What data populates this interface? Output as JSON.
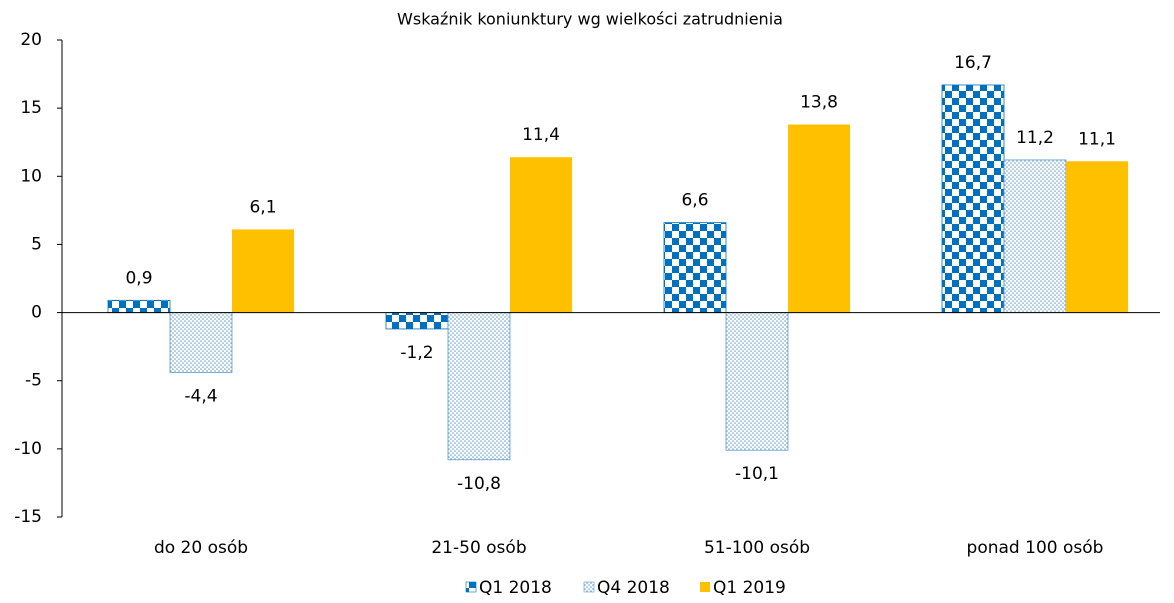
{
  "chart_data": {
    "type": "bar",
    "title": "Wskaźnik koniunktury wg wielkości zatrudnienia",
    "categories": [
      "do 20 osób",
      "21-50 osób",
      "51-100 osób",
      "ponad 100 osób"
    ],
    "series": [
      {
        "name": "Q1 2018",
        "color": "#0070c0",
        "pattern": "checker",
        "values": [
          0.9,
          -1.2,
          6.6,
          16.7
        ],
        "value_labels": [
          "0,9",
          "-1,2",
          "6,6",
          "16,7"
        ]
      },
      {
        "name": "Q4 2018",
        "color": "#5b9bd5",
        "pattern": "dots",
        "values": [
          -4.4,
          -10.8,
          -10.1,
          11.2
        ],
        "value_labels": [
          "-4,4",
          "-10,8",
          "-10,1",
          "11,2"
        ]
      },
      {
        "name": "Q1 2019",
        "color": "#ffc000",
        "pattern": "solid",
        "values": [
          6.1,
          11.4,
          13.8,
          11.1
        ],
        "value_labels": [
          "6,1",
          "11,4",
          "13,8",
          "11,1"
        ]
      }
    ],
    "ylim": [
      -15,
      20
    ],
    "yticks": [
      -15,
      -10,
      -5,
      0,
      5,
      10,
      15,
      20
    ],
    "grid": false,
    "legend": "bottom"
  }
}
